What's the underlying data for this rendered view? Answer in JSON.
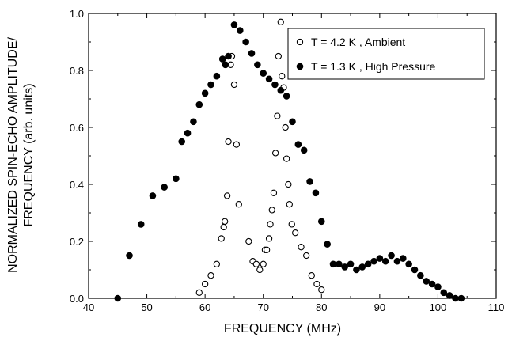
{
  "chart_data": {
    "type": "scatter",
    "title": "",
    "xlabel": "FREQUENCY (MHz)",
    "ylabel_lines": [
      "NORMALIZED SPIN-ECHO AMPLITUDE/",
      "FREQUENCY (arb. units)"
    ],
    "xlim": [
      40,
      110
    ],
    "ylim": [
      0.0,
      1.0
    ],
    "xticks": [
      40,
      50,
      60,
      70,
      80,
      90,
      100,
      110
    ],
    "yticks": [
      0.0,
      0.2,
      0.4,
      0.6,
      0.8,
      1.0
    ],
    "xtick_labels": [
      "40",
      "50",
      "60",
      "70",
      "80",
      "90",
      "100",
      "110"
    ],
    "ytick_labels": [
      "0.0",
      "0.2",
      "0.4",
      "0.6",
      "0.8",
      "1.0"
    ],
    "grid": false,
    "legend_position": "top-right",
    "series": [
      {
        "name": "T = 4.2 K , Ambient",
        "marker": "open-circle",
        "color": "#000000",
        "x": [
          59,
          60,
          61,
          62,
          62.8,
          63.2,
          63.4,
          63.8,
          64,
          64.4,
          64.6,
          65,
          65.4,
          65.8,
          67.5,
          68.2,
          68.8,
          69.4,
          70,
          70.3,
          70.6,
          71,
          71.2,
          71.5,
          71.8,
          72.1,
          72.4,
          72.6,
          73,
          73.2,
          73.5,
          73.8,
          74,
          74.3,
          74.5,
          74.9,
          75.5,
          76.5,
          77.4,
          78.3,
          79.2,
          80
        ],
        "y": [
          0.02,
          0.05,
          0.08,
          0.12,
          0.21,
          0.25,
          0.27,
          0.36,
          0.55,
          0.82,
          0.85,
          0.75,
          0.54,
          0.33,
          0.2,
          0.13,
          0.12,
          0.1,
          0.12,
          0.17,
          0.17,
          0.21,
          0.26,
          0.31,
          0.37,
          0.51,
          0.64,
          0.85,
          0.97,
          0.78,
          0.74,
          0.6,
          0.49,
          0.4,
          0.33,
          0.26,
          0.23,
          0.18,
          0.15,
          0.08,
          0.05,
          0.03
        ]
      },
      {
        "name": "T = 1.3 K , High Pressure",
        "marker": "filled-circle",
        "color": "#000000",
        "x": [
          45,
          47,
          49,
          51,
          53,
          55,
          56,
          57,
          58,
          59,
          60,
          61,
          62,
          63,
          63.5,
          64,
          65,
          66,
          67,
          68,
          69,
          70,
          71,
          72,
          73,
          74,
          75,
          76,
          77,
          78,
          79,
          80,
          81,
          82,
          83,
          84,
          85,
          86,
          87,
          88,
          89,
          90,
          91,
          92,
          93,
          94,
          95,
          96,
          97,
          98,
          99,
          100,
          101,
          102,
          103,
          104
        ],
        "y": [
          0.0,
          0.15,
          0.26,
          0.36,
          0.39,
          0.42,
          0.55,
          0.58,
          0.62,
          0.68,
          0.72,
          0.75,
          0.78,
          0.84,
          0.82,
          0.85,
          0.96,
          0.94,
          0.9,
          0.86,
          0.82,
          0.79,
          0.77,
          0.75,
          0.73,
          0.71,
          0.62,
          0.54,
          0.52,
          0.41,
          0.37,
          0.27,
          0.19,
          0.12,
          0.12,
          0.11,
          0.12,
          0.1,
          0.11,
          0.12,
          0.13,
          0.14,
          0.13,
          0.15,
          0.13,
          0.14,
          0.12,
          0.1,
          0.08,
          0.06,
          0.05,
          0.04,
          0.02,
          0.01,
          0.0,
          0.0
        ]
      }
    ]
  }
}
